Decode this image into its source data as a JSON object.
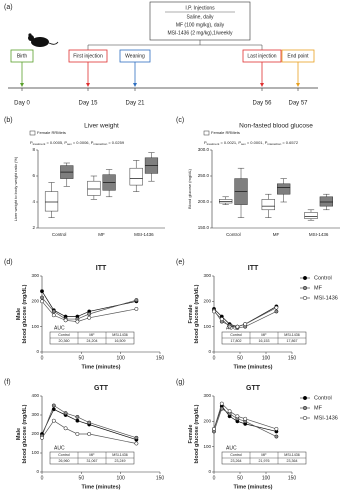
{
  "timeline": {
    "panel": "(a)",
    "injections": {
      "title": "I.P. Injections",
      "lines": [
        "Saline, daily",
        "MF (100 mg/kg), daily",
        "MSI-1436 (2 mg/kg),1/weekly"
      ]
    },
    "events": [
      {
        "label": "Birth",
        "day": "Day 0",
        "color": "#5aa02c"
      },
      {
        "label": "First injection",
        "day": "Day 15",
        "color": "#e03030"
      },
      {
        "label": "Weaning",
        "day": "Day 21",
        "color": "#2f6fc0"
      },
      {
        "label": "Last injection",
        "day": "Day 56",
        "color": "#e03030"
      },
      {
        "label": "End point",
        "day": "Day 57",
        "color": "#e8a020"
      }
    ]
  },
  "chart_data": [
    {
      "type": "box",
      "panel": "(b)",
      "title": "Liver weight",
      "ylabel": "Liver weight to body weight ratio (%)",
      "categories": [
        "Control",
        "MF",
        "MSI-1436"
      ],
      "stats": [
        {
          "sym": "P",
          "sub": "treatment",
          "text": " = 0.0005, "
        },
        {
          "sym": "P",
          "sub": "sex",
          "text": " = 0.0006, "
        },
        {
          "sym": "P",
          "sub": "interaction",
          "text": " = 0.0259"
        }
      ],
      "ylim": [
        2,
        8
      ],
      "yticks": [
        2,
        4,
        6,
        8
      ],
      "series": [
        {
          "name": "Female RRMets",
          "color": "#ffffff",
          "boxes": [
            {
              "min": 2.8,
              "q1": 3.3,
              "median": 4.0,
              "q3": 4.8,
              "max": 5.5
            },
            {
              "min": 4.2,
              "q1": 4.5,
              "median": 5.0,
              "q3": 5.6,
              "max": 6.0
            },
            {
              "min": 4.8,
              "q1": 5.3,
              "median": 5.8,
              "q3": 6.6,
              "max": 7.2
            }
          ]
        },
        {
          "color": "#7f7f7f",
          "boxes": [
            {
              "min": 5.2,
              "q1": 5.8,
              "median": 6.3,
              "q3": 6.8,
              "max": 7.0
            },
            {
              "min": 4.4,
              "q1": 4.9,
              "median": 5.5,
              "q3": 6.1,
              "max": 6.5
            },
            {
              "min": 5.6,
              "q1": 6.2,
              "median": 6.8,
              "q3": 7.4,
              "max": 7.8
            }
          ]
        }
      ]
    },
    {
      "type": "box",
      "panel": "(c)",
      "title": "Non-fasted blood glucose",
      "ylabel": "Blood glucose (mg/dL)",
      "categories": [
        "Control",
        "MF",
        "MSI-1436"
      ],
      "stats": [
        {
          "sym": "P",
          "sub": "treatment",
          "text": " = 0.0021, "
        },
        {
          "sym": "P",
          "sub": "sex",
          "text": " = 0.0001, "
        },
        {
          "sym": "P",
          "sub": "interaction",
          "text": " = 0.6572"
        }
      ],
      "ylim": [
        150,
        300
      ],
      "yticks": [
        {
          "value": 150,
          "label": "150.0"
        },
        {
          "value": 200,
          "label": "200.0"
        },
        {
          "value": 250,
          "label": "250.0"
        },
        {
          "value": 300,
          "label": "300.0"
        }
      ],
      "series": [
        {
          "name": "Female RRMets",
          "color": "#ffffff",
          "boxes": [
            {
              "min": 195,
              "q1": 198,
              "median": 201,
              "q3": 205,
              "max": 210
            },
            {
              "min": 170,
              "q1": 185,
              "median": 192,
              "q3": 205,
              "max": 215
            },
            {
              "min": 165,
              "q1": 168,
              "median": 172,
              "q3": 180,
              "max": 185
            }
          ]
        },
        {
          "color": "#7f7f7f",
          "boxes": [
            {
              "min": 170,
              "q1": 195,
              "median": 220,
              "q3": 245,
              "max": 265
            },
            {
              "min": 200,
              "q1": 215,
              "median": 228,
              "q3": 235,
              "max": 245
            },
            {
              "min": 185,
              "q1": 192,
              "median": 200,
              "q3": 210,
              "max": 215
            }
          ]
        }
      ]
    },
    {
      "type": "line",
      "panel": "(d)",
      "title": "ITT",
      "ylabel": [
        "Male",
        "blood glucose (mg/dL)"
      ],
      "xlabel": "Time (minutes)",
      "x": [
        0,
        15,
        30,
        45,
        60,
        120
      ],
      "xlim": [
        0,
        150
      ],
      "xticks": [
        0,
        50,
        100,
        150
      ],
      "ylim": [
        0,
        300
      ],
      "yticks": [
        0,
        100,
        200,
        300
      ],
      "legend": false,
      "series": [
        {
          "name": "Control",
          "color": "#000000",
          "values": [
            240,
            165,
            140,
            140,
            160,
            200
          ]
        },
        {
          "name": "MF",
          "color": "#8c8c8c",
          "values": [
            215,
            160,
            130,
            130,
            150,
            205
          ]
        },
        {
          "name": "MSI-1436",
          "color": "#ffffff",
          "values": [
            200,
            145,
            125,
            120,
            135,
            170
          ]
        }
      ],
      "auc": {
        "title": "AUC",
        "header": [
          "Control",
          "MF",
          "MSI-1436"
        ],
        "row": [
          "20,360",
          "24,204",
          "16,509"
        ]
      }
    },
    {
      "type": "line",
      "panel": "(e)",
      "title": "ITT",
      "ylabel": [
        "Female",
        "blood glucose (mg/dL)"
      ],
      "xlabel": "Time (minutes)",
      "x": [
        0,
        15,
        30,
        45,
        60,
        120
      ],
      "xlim": [
        0,
        150
      ],
      "xticks": [
        0,
        50,
        100,
        150
      ],
      "ylim": [
        0,
        300
      ],
      "yticks": [
        0,
        100,
        200,
        300
      ],
      "legend": "right",
      "series": [
        {
          "name": "Control",
          "color": "#000000",
          "values": [
            170,
            140,
            110,
            100,
            110,
            180
          ]
        },
        {
          "name": "MF",
          "color": "#8c8c8c",
          "values": [
            165,
            120,
            105,
            95,
            100,
            160
          ]
        },
        {
          "name": "MSI-1436",
          "color": "#ffffff",
          "values": [
            160,
            130,
            100,
            100,
            110,
            175
          ]
        }
      ],
      "auc": {
        "title": "AUC",
        "header": [
          "Control",
          "MF",
          "MSI-1436"
        ],
        "row": [
          "17,802",
          "16,153",
          "17,867"
        ]
      }
    },
    {
      "type": "line",
      "panel": "(f)",
      "title": "GTT",
      "ylabel": [
        "Male",
        "blood glucose (mg/dL)"
      ],
      "xlabel": "Time (minutes)",
      "x": [
        0,
        15,
        30,
        45,
        60,
        120
      ],
      "xlim": [
        0,
        150
      ],
      "xticks": [
        0,
        50,
        100,
        150
      ],
      "ylim": [
        0,
        400
      ],
      "yticks": [
        0,
        100,
        200,
        300,
        400
      ],
      "legend": false,
      "series": [
        {
          "name": "Control",
          "color": "#000000",
          "values": [
            200,
            330,
            300,
            270,
            250,
            170
          ]
        },
        {
          "name": "MF",
          "color": "#8c8c8c",
          "values": [
            190,
            350,
            310,
            290,
            260,
            180
          ]
        },
        {
          "name": "MSI-1436",
          "color": "#ffffff",
          "values": [
            180,
            270,
            230,
            200,
            200,
            150
          ]
        }
      ],
      "auc": {
        "title": "AUC",
        "header": [
          "Control",
          "MF",
          "MSI-1436"
        ],
        "row": [
          "26,960",
          "31,067",
          "23,249"
        ]
      }
    },
    {
      "type": "line",
      "panel": "(g)",
      "title": "GTT",
      "ylabel": [
        "Female",
        "blood glucose (mg/dL)"
      ],
      "xlabel": "Time (minutes)",
      "x": [
        0,
        15,
        30,
        45,
        60,
        120
      ],
      "xlim": [
        0,
        150
      ],
      "xticks": [
        0,
        50,
        100,
        150
      ],
      "ylim": [
        0,
        300
      ],
      "yticks": [
        0,
        100,
        200,
        300
      ],
      "legend": "right",
      "series": [
        {
          "name": "Control",
          "color": "#000000",
          "values": [
            170,
            260,
            220,
            200,
            190,
            160
          ]
        },
        {
          "name": "MF",
          "color": "#8c8c8c",
          "values": [
            160,
            250,
            230,
            210,
            200,
            140
          ]
        },
        {
          "name": "MSI-1436",
          "color": "#ffffff",
          "values": [
            170,
            270,
            240,
            220,
            210,
            170
          ]
        }
      ],
      "auc": {
        "title": "AUC",
        "header": [
          "Control",
          "MF",
          "MSI-1436"
        ],
        "row": [
          "23,264",
          "21,976",
          "23,364"
        ]
      }
    }
  ]
}
